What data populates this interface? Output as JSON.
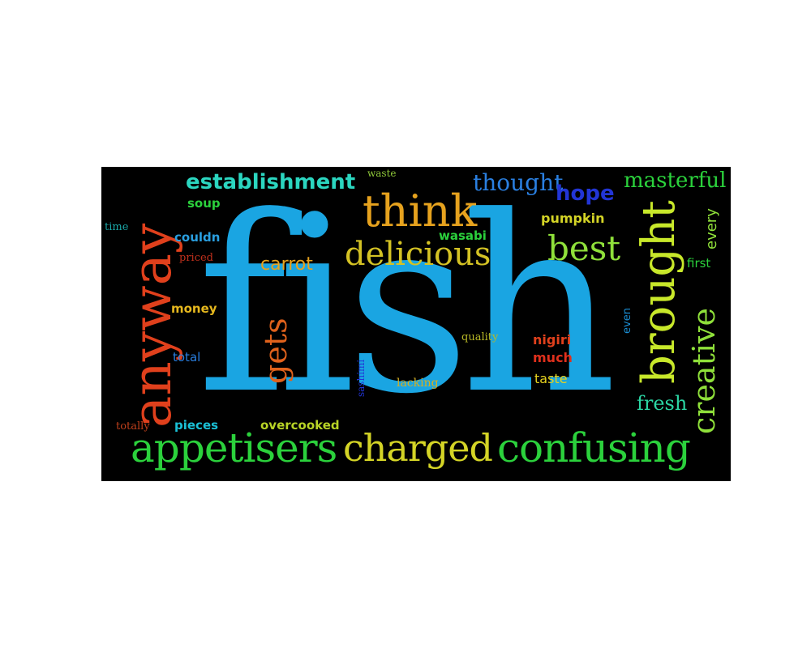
{
  "background": "#000000",
  "words": [
    {
      "text": "fish",
      "color": "#1aa5e2"
    },
    {
      "text": "anyway",
      "color": "#e0401c"
    },
    {
      "text": "appetisers",
      "color": "#2bd13c"
    },
    {
      "text": "charged",
      "color": "#d4d426"
    },
    {
      "text": "confusing",
      "color": "#2bd13c"
    },
    {
      "text": "think",
      "color": "#e6a21e"
    },
    {
      "text": "delicious",
      "color": "#d4c224"
    },
    {
      "text": "brought",
      "color": "#c8e82a"
    },
    {
      "text": "best",
      "color": "#8fe03a"
    },
    {
      "text": "creative",
      "color": "#8fe03a"
    },
    {
      "text": "establishment",
      "color": "#2bd6c0"
    },
    {
      "text": "thought",
      "color": "#2a7fe0"
    },
    {
      "text": "hope",
      "color": "#2235d6"
    },
    {
      "text": "masterful",
      "color": "#2bd13c"
    },
    {
      "text": "gets",
      "color": "#e0621c"
    },
    {
      "text": "carrot",
      "color": "#e6a21e"
    },
    {
      "text": "fresh",
      "color": "#2bd6a4"
    },
    {
      "text": "every",
      "color": "#8fe03a"
    },
    {
      "text": "pumpkin",
      "color": "#d4d426"
    },
    {
      "text": "wasabi",
      "color": "#2bd13c"
    },
    {
      "text": "first",
      "color": "#2bd13c"
    },
    {
      "text": "soup",
      "color": "#2bd13c"
    },
    {
      "text": "couldn",
      "color": "#2a9fe0"
    },
    {
      "text": "time",
      "color": "#1aa5a5"
    },
    {
      "text": "priced",
      "color": "#c0301c"
    },
    {
      "text": "money",
      "color": "#e6b81e"
    },
    {
      "text": "total",
      "color": "#2a7fe0"
    },
    {
      "text": "nigiri",
      "color": "#e0401c"
    },
    {
      "text": "much",
      "color": "#e0301c"
    },
    {
      "text": "taste",
      "color": "#e6d21e"
    },
    {
      "text": "quality",
      "color": "#b8b826"
    },
    {
      "text": "lacking",
      "color": "#d4b024"
    },
    {
      "text": "sashimi",
      "color": "#2235d6"
    },
    {
      "text": "even",
      "color": "#1a8fd6"
    },
    {
      "text": "totally",
      "color": "#c0401c"
    },
    {
      "text": "pieces",
      "color": "#1ac0d6"
    },
    {
      "text": "overcooked",
      "color": "#b8d426"
    },
    {
      "text": "waste",
      "color": "#8fc83a"
    }
  ]
}
